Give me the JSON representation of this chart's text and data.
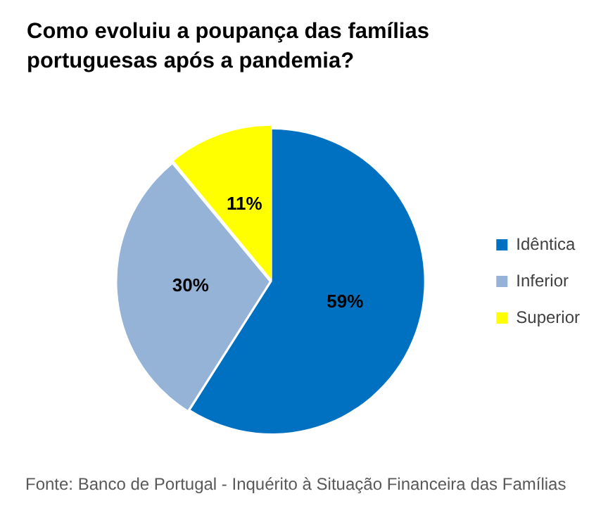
{
  "chart_data": {
    "type": "pie",
    "title": "Como evoluiu a poupança das famílias portuguesas após a pandemia?",
    "categories": [
      "Idêntica",
      "Inferior",
      "Superior"
    ],
    "values": [
      59,
      30,
      11
    ],
    "colors": [
      "#0070c0",
      "#95b3d7",
      "#ffff00"
    ],
    "value_labels": [
      "59%",
      "30%",
      "11%"
    ],
    "legend": "right",
    "annotations": [
      "Fonte: Banco de Portugal - Inquérito à Situação Financeira das Famílias"
    ]
  }
}
